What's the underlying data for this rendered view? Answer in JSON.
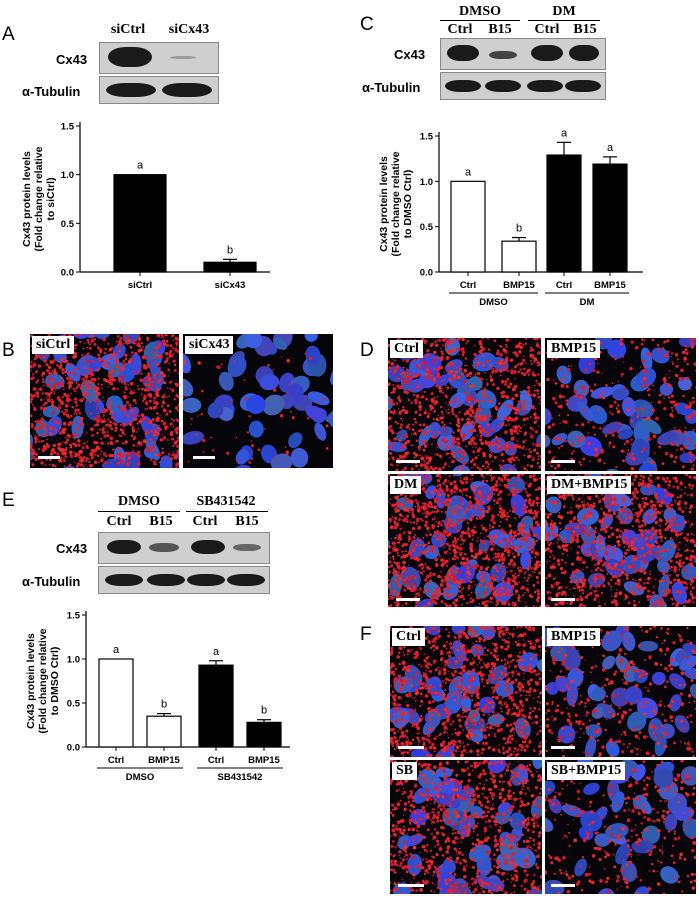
{
  "panels": {
    "A": {
      "label": "A",
      "blot_headers": [
        "siCtrl",
        "siCx43"
      ],
      "blot_rows": [
        "Cx43",
        "α-Tubulin"
      ],
      "chart_data": {
        "type": "bar",
        "categories": [
          "siCtrl",
          "siCx43"
        ],
        "values": [
          1.0,
          0.1
        ],
        "errors": [
          0.0,
          0.03
        ],
        "significance": [
          "a",
          "b"
        ],
        "fills": [
          "#000000",
          "#000000"
        ],
        "ylabel_lines": [
          "Cx43 protein levels",
          "(Fold change relative",
          "to siCtrl)"
        ],
        "yticks": [
          "0.0",
          "0.5",
          "1.0",
          "1.5"
        ],
        "ylim": [
          0,
          1.5
        ]
      }
    },
    "B": {
      "label": "B",
      "images": [
        "siCtrl",
        "siCx43"
      ]
    },
    "C": {
      "label": "C",
      "group_headers": [
        "DMSO",
        "DM"
      ],
      "lane_headers": [
        "Ctrl",
        "B15",
        "Ctrl",
        "B15"
      ],
      "blot_rows": [
        "Cx43",
        "α-Tubulin"
      ],
      "chart_data": {
        "type": "bar",
        "categories": [
          "Ctrl",
          "BMP15",
          "Ctrl",
          "BMP15"
        ],
        "groups": [
          "DMSO",
          "DM"
        ],
        "values": [
          1.0,
          0.34,
          1.29,
          1.19
        ],
        "errors": [
          0.0,
          0.04,
          0.14,
          0.08
        ],
        "significance": [
          "a",
          "b",
          "a",
          "a"
        ],
        "fills": [
          "#ffffff",
          "#ffffff",
          "#000000",
          "#000000"
        ],
        "ylabel_lines": [
          "Cx43 protein levels",
          "(Fold change relative",
          "to DMSO Ctrl)"
        ],
        "yticks": [
          "0.0",
          "0.5",
          "1.0",
          "1.5"
        ],
        "ylim": [
          0,
          1.5
        ]
      }
    },
    "D": {
      "label": "D",
      "images": [
        "Ctrl",
        "BMP15",
        "DM",
        "DM+BMP15"
      ]
    },
    "E": {
      "label": "E",
      "group_headers": [
        "DMSO",
        "SB431542"
      ],
      "lane_headers": [
        "Ctrl",
        "B15",
        "Ctrl",
        "B15"
      ],
      "blot_rows": [
        "Cx43",
        "α-Tubulin"
      ],
      "chart_data": {
        "type": "bar",
        "categories": [
          "Ctrl",
          "BMP15",
          "Ctrl",
          "BMP15"
        ],
        "groups": [
          "DMSO",
          "SB431542"
        ],
        "values": [
          1.0,
          0.35,
          0.93,
          0.28
        ],
        "errors": [
          0.0,
          0.03,
          0.05,
          0.03
        ],
        "significance": [
          "a",
          "b",
          "a",
          "b"
        ],
        "fills": [
          "#ffffff",
          "#ffffff",
          "#000000",
          "#000000"
        ],
        "ylabel_lines": [
          "Cx43 protein levels",
          "(Fold change relative",
          "to DMSO Ctrl)"
        ],
        "yticks": [
          "0.0",
          "0.5",
          "1.0",
          "1.5"
        ],
        "ylim": [
          0,
          1.5
        ]
      }
    },
    "F": {
      "label": "F",
      "images": [
        "Ctrl",
        "BMP15",
        "SB",
        "SB+BMP15"
      ]
    }
  }
}
